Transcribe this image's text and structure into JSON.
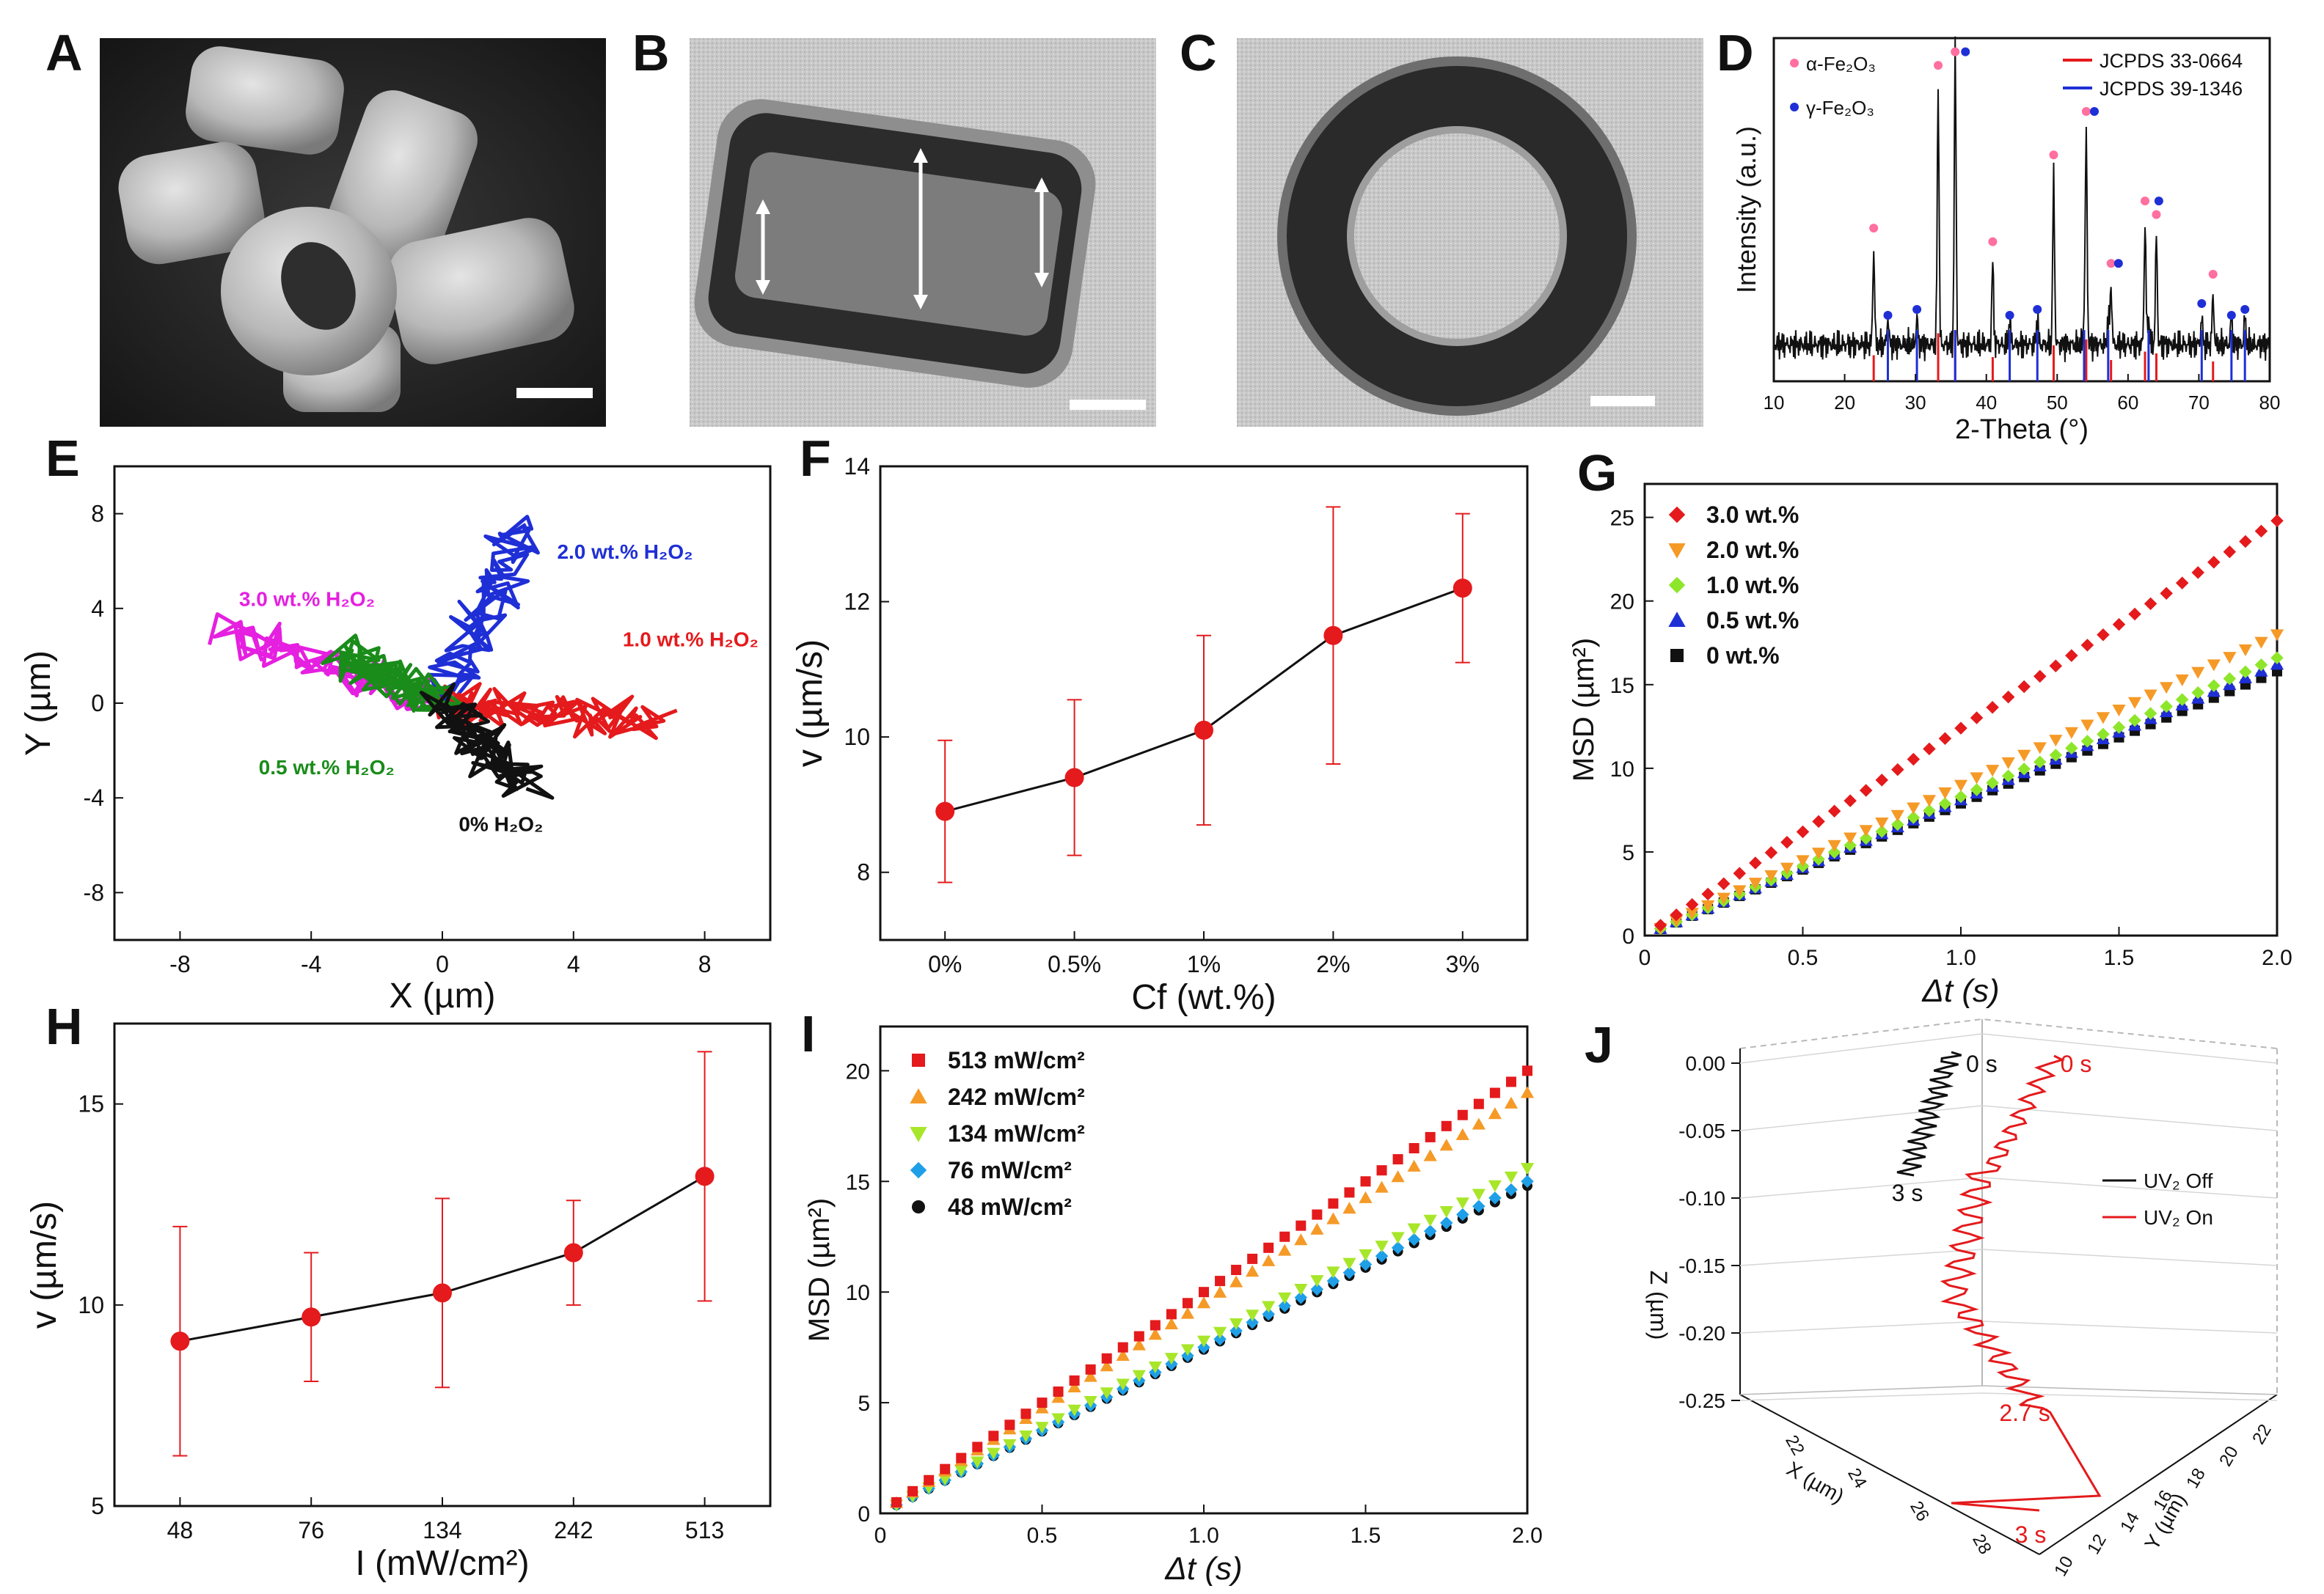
{
  "panel_labels": {
    "A": "A",
    "B": "B",
    "C": "C",
    "D": "D",
    "E": "E",
    "F": "F",
    "G": "G",
    "H": "H",
    "I": "I",
    "J": "J"
  },
  "colors": {
    "red": "#e41a1c",
    "blue": "#1f2fd6",
    "green": "#1a8c1a",
    "black": "#111111",
    "magenta": "#e520e0",
    "orange": "#f59a27",
    "lightgreen": "#8ee62a",
    "cyan": "#1e9fe8",
    "pink": "#ff6fa0"
  },
  "chart_data": [
    {
      "id": "D",
      "type": "line",
      "xlabel": "2-Theta (°)",
      "ylabel": "Intensity (a.u.)",
      "xlim": [
        10,
        80
      ],
      "x_ticks": [
        "10",
        "20",
        "30",
        "40",
        "50",
        "60",
        "70",
        "80"
      ],
      "legend": [
        {
          "name": "α-Fe₂O₃",
          "marker": "pink-dot"
        },
        {
          "name": "γ-Fe₂O₃",
          "marker": "blue-dot"
        },
        {
          "name": "JCPDS 33-0664",
          "color": "#e41a1c"
        },
        {
          "name": "JCPDS 39-1346",
          "color": "#1f2fd6"
        }
      ],
      "alpha_peaks": [
        24.1,
        33.2,
        35.6,
        40.9,
        49.5,
        54.1,
        57.6,
        62.4,
        64.0,
        72.0
      ],
      "alpha_heights": [
        0.35,
        0.95,
        1.0,
        0.3,
        0.62,
        0.78,
        0.22,
        0.45,
        0.4,
        0.18
      ],
      "gamma_peaks": [
        26.1,
        30.2,
        35.6,
        43.3,
        47.2,
        53.8,
        57.2,
        62.9,
        70.4,
        74.6,
        76.5
      ]
    },
    {
      "id": "E",
      "type": "trajectory",
      "xlabel": "X (µm)",
      "ylabel": "Y (µm)",
      "xlim": [
        -10,
        10
      ],
      "ylim": [
        -10,
        10
      ],
      "x_ticks": [
        "-8",
        "-4",
        "0",
        "4",
        "8"
      ],
      "y_ticks": [
        "-8",
        "-4",
        "0",
        "4",
        "8"
      ],
      "series": [
        {
          "name": "3.0 wt.% H₂O₂",
          "end": [
            -6.5,
            3.0
          ],
          "color": "#e520e0"
        },
        {
          "name": "2.0 wt.% H₂O₂",
          "end": [
            2.5,
            7.5
          ],
          "color": "#1f2fd6"
        },
        {
          "name": "1.0 wt.% H₂O₂",
          "end": [
            6.5,
            -0.8
          ],
          "color": "#e41a1c"
        },
        {
          "name": "0.5 wt.% H₂O₂",
          "end": [
            -3.0,
            2.0
          ],
          "color": "#1a8c1a"
        },
        {
          "name": "0% H₂O₂",
          "end": [
            2.5,
            -3.5
          ],
          "color": "#111111"
        }
      ]
    },
    {
      "id": "F",
      "type": "line",
      "xlabel": "Cf (wt.%)",
      "ylabel": "v (µm/s)",
      "categories": [
        "0%",
        "0.5%",
        "1%",
        "2%",
        "3%"
      ],
      "values": [
        8.9,
        9.4,
        10.1,
        11.5,
        12.2
      ],
      "error": [
        1.05,
        1.15,
        1.4,
        1.9,
        1.1
      ],
      "ylim": [
        7,
        14
      ],
      "y_ticks": [
        "8",
        "10",
        "12",
        "14"
      ]
    },
    {
      "id": "G",
      "type": "scatter",
      "xlabel": "Δt (s)",
      "ylabel": "MSD (µm²)",
      "xlim": [
        0,
        2
      ],
      "ylim": [
        0,
        27
      ],
      "x_ticks": [
        "0",
        "0.5",
        "1.0",
        "1.5",
        "2.0"
      ],
      "y_ticks": [
        "0",
        "5",
        "10",
        "15",
        "20",
        "25"
      ],
      "series": [
        {
          "name": "3.0 wt.%",
          "slope": 12.4,
          "color": "#e41a1c",
          "marker": "diamond"
        },
        {
          "name": "2.0 wt.%",
          "slope": 9.0,
          "color": "#f59a27",
          "marker": "triangle-down"
        },
        {
          "name": "1.0 wt.%",
          "slope": 8.3,
          "color": "#8ee62a",
          "marker": "diamond"
        },
        {
          "name": "0.5 wt.%",
          "slope": 8.1,
          "color": "#1f2fd6",
          "marker": "triangle"
        },
        {
          "name": "0 wt.%",
          "slope": 7.9,
          "color": "#111111",
          "marker": "square"
        }
      ]
    },
    {
      "id": "H",
      "type": "line",
      "xlabel": "I (mW/cm²)",
      "ylabel": "v (µm/s)",
      "categories": [
        "48",
        "76",
        "134",
        "242",
        "513"
      ],
      "values": [
        9.1,
        9.7,
        10.3,
        11.3,
        13.2
      ],
      "error": [
        2.85,
        1.6,
        2.35,
        1.3,
        3.1
      ],
      "ylim": [
        5,
        17
      ],
      "y_ticks": [
        "5",
        "10",
        "15"
      ]
    },
    {
      "id": "I",
      "type": "scatter",
      "xlabel": "Δt (s)",
      "ylabel": "MSD (µm²)",
      "xlim": [
        0,
        2
      ],
      "ylim": [
        0,
        22
      ],
      "x_ticks": [
        "0",
        "0.5",
        "1.0",
        "1.5",
        "2.0"
      ],
      "y_ticks": [
        "0",
        "5",
        "10",
        "15",
        "20"
      ],
      "series": [
        {
          "name": "513 mW/cm²",
          "slope": 10.0,
          "color": "#e41a1c",
          "marker": "square"
        },
        {
          "name": "242 mW/cm²",
          "slope": 9.5,
          "color": "#f59a27",
          "marker": "triangle"
        },
        {
          "name": "134 mW/cm²",
          "slope": 7.8,
          "color": "#a8e62a",
          "marker": "triangle-down"
        },
        {
          "name": "76 mW/cm²",
          "slope": 7.5,
          "color": "#1e9fe8",
          "marker": "diamond"
        },
        {
          "name": "48 mW/cm²",
          "slope": 7.4,
          "color": "#111111",
          "marker": "circle"
        }
      ]
    },
    {
      "id": "J",
      "type": "line3d",
      "xlabel": "X (µm)",
      "ylabel": "Y (µm)",
      "zlabel": "Z (µm)",
      "z_ticks": [
        "0.00",
        "-0.05",
        "-0.10",
        "-0.15",
        "-0.20",
        "-0.25"
      ],
      "x_ticks": [
        "22",
        "24",
        "26",
        "28"
      ],
      "y_ticks": [
        "10",
        "12",
        "14",
        "16",
        "18",
        "20",
        "22"
      ],
      "series": [
        {
          "name": "UV₂ Off",
          "color": "#111111",
          "start_label": "0 s",
          "end_label": "3 s"
        },
        {
          "name": "UV₂ On",
          "color": "#e41a1c",
          "start_label": "0 s",
          "mid_label": "2.7 s",
          "end_label": "3 s"
        }
      ]
    }
  ]
}
